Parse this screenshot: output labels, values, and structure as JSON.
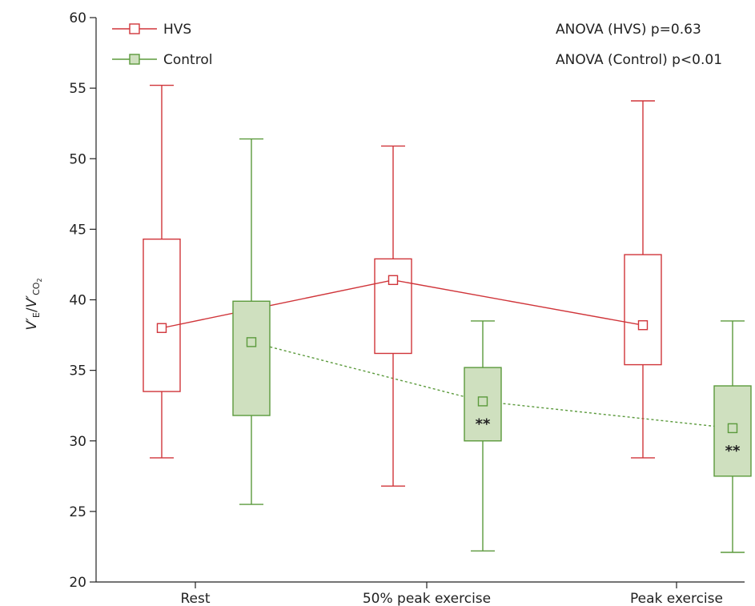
{
  "chart_data": {
    "type": "box",
    "categories": [
      "Rest",
      "50% peak exercise",
      "Peak exercise"
    ],
    "ylim": [
      20,
      60
    ],
    "yticks": [
      20,
      25,
      30,
      35,
      40,
      45,
      50,
      55,
      60
    ],
    "ylabel_parts": {
      "v1": "V′",
      "sub1": "E",
      "slash": "/",
      "v2": "V′",
      "sub2": "CO",
      "sub3": "2"
    },
    "series": [
      {
        "name": "HVS",
        "color": "#d0353a",
        "fill": "none",
        "line_style": "solid",
        "boxes": [
          {
            "min": 28.8,
            "q1": 33.5,
            "median": 38.0,
            "q3": 44.3,
            "max": 55.2
          },
          {
            "min": 26.8,
            "q1": 36.2,
            "median": 41.4,
            "q3": 42.9,
            "max": 50.9
          },
          {
            "min": 28.8,
            "q1": 35.4,
            "median": 38.2,
            "q3": 43.2,
            "max": 54.1
          }
        ]
      },
      {
        "name": "Control",
        "color": "#5b9a3c",
        "fill": "#cfe0bf",
        "line_style": "dotted",
        "boxes": [
          {
            "min": 25.5,
            "q1": 31.8,
            "median": 37.0,
            "q3": 39.9,
            "max": 51.4
          },
          {
            "min": 22.2,
            "q1": 30.0,
            "median": 32.8,
            "q3": 35.2,
            "max": 38.5
          },
          {
            "min": 22.1,
            "q1": 27.5,
            "median": 30.9,
            "q3": 33.9,
            "max": 38.5
          }
        ]
      }
    ],
    "annotations": [
      {
        "series": 1,
        "category": 1,
        "text": "**"
      },
      {
        "series": 1,
        "category": 2,
        "text": "**"
      }
    ],
    "stats": [
      "ANOVA (HVS) p=0.63",
      "ANOVA (Control) p<0.01"
    ]
  }
}
